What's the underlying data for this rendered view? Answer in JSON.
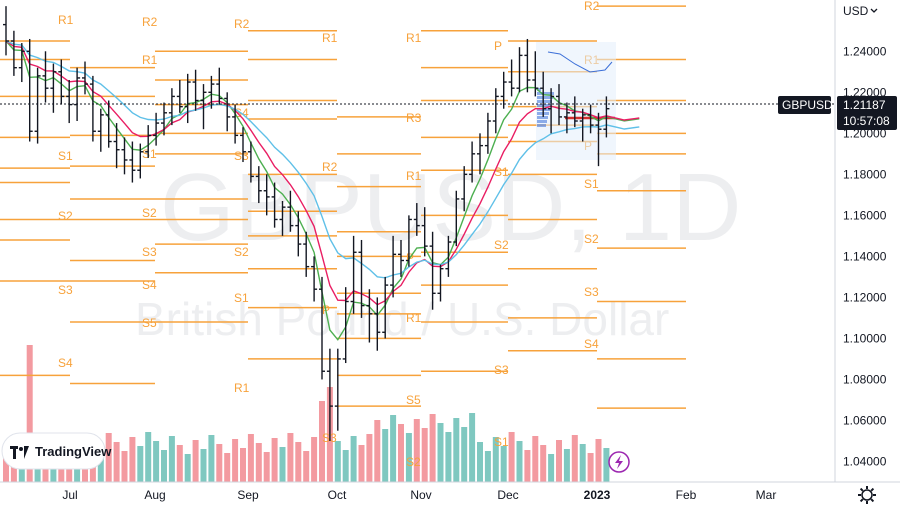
{
  "header": {
    "currency_selector": "USD"
  },
  "watermark": {
    "symbol_line": "GBPUSD, 1D",
    "name_line": "British Pound / U.S. Dollar"
  },
  "logo": {
    "text": "TradingView"
  },
  "price_tag": {
    "symbol": "GBPUSD",
    "price": "1.21187",
    "countdown": "10:57:08"
  },
  "colors": {
    "up_bar": "#131722",
    "volume_up": "#7fc8c0",
    "volume_down": "#f39aa0",
    "ema_fast": "#e91e63",
    "ema_mid": "#4caf50",
    "ema_slow": "#5fc0e8",
    "pivot": "#f7a23b",
    "price_tag_bg": "#131722",
    "poc": "#d32f2f"
  },
  "chart_data": {
    "type": "ohlc",
    "symbol": "GBPUSD",
    "interval": "1D",
    "y_axis": {
      "range": [
        1.03,
        1.265
      ],
      "ticks": [
        "1.24000",
        "1.22000",
        "1.20000",
        "1.18000",
        "1.16000",
        "1.14000",
        "1.12000",
        "1.10000",
        "1.08000",
        "1.06000",
        "1.04000"
      ]
    },
    "x_axis": {
      "labels": [
        "Jul",
        "Aug",
        "Sep",
        "Oct",
        "Nov",
        "Dec",
        "2023",
        "Feb",
        "Mar"
      ]
    },
    "last_price": 1.21187,
    "pivot_labels": [
      "R1",
      "R2",
      "R2",
      "R1",
      "R1",
      "S1",
      "S1",
      "S2",
      "S2",
      "S3",
      "S3",
      "S4",
      "S4",
      "S5",
      "S4",
      "S3",
      "S2",
      "S1",
      "R1",
      "R2",
      "P",
      "R1",
      "R3",
      "R1",
      "P",
      "R1",
      "P",
      "S1",
      "S2",
      "S3",
      "R2",
      "R1",
      "P",
      "S1",
      "S2",
      "S3",
      "S4",
      "S5",
      "S1",
      "S2",
      "S3"
    ],
    "series": [
      {
        "name": "GBPUSD",
        "ohlc_note": "daily bars Jun–Jan"
      },
      {
        "name": "EMA fast",
        "values": []
      },
      {
        "name": "EMA mid",
        "values": []
      },
      {
        "name": "EMA slow",
        "values": []
      }
    ],
    "candles": [
      [
        1.253,
        1.262,
        1.238,
        1.245
      ],
      [
        1.245,
        1.25,
        1.228,
        1.232
      ],
      [
        1.232,
        1.244,
        1.225,
        1.24
      ],
      [
        1.24,
        1.246,
        1.196,
        1.201
      ],
      [
        1.201,
        1.232,
        1.195,
        1.228
      ],
      [
        1.228,
        1.24,
        1.215,
        1.222
      ],
      [
        1.222,
        1.234,
        1.21,
        1.23
      ],
      [
        1.23,
        1.236,
        1.214,
        1.218
      ],
      [
        1.218,
        1.226,
        1.205,
        1.214
      ],
      [
        1.214,
        1.232,
        1.206,
        1.227
      ],
      [
        1.227,
        1.235,
        1.219,
        1.224
      ],
      [
        1.224,
        1.228,
        1.196,
        1.201
      ],
      [
        1.201,
        1.212,
        1.191,
        1.209
      ],
      [
        1.209,
        1.216,
        1.193,
        1.196
      ],
      [
        1.196,
        1.205,
        1.183,
        1.192
      ],
      [
        1.192,
        1.198,
        1.18,
        1.187
      ],
      [
        1.187,
        1.196,
        1.176,
        1.182
      ],
      [
        1.182,
        1.195,
        1.178,
        1.191
      ],
      [
        1.191,
        1.204,
        1.188,
        1.199
      ],
      [
        1.199,
        1.21,
        1.194,
        1.205
      ],
      [
        1.205,
        1.215,
        1.199,
        1.21
      ],
      [
        1.21,
        1.222,
        1.204,
        1.218
      ],
      [
        1.218,
        1.226,
        1.21,
        1.213
      ],
      [
        1.213,
        1.229,
        1.205,
        1.225
      ],
      [
        1.225,
        1.231,
        1.211,
        1.216
      ],
      [
        1.216,
        1.224,
        1.202,
        1.22
      ],
      [
        1.22,
        1.228,
        1.212,
        1.224
      ],
      [
        1.224,
        1.232,
        1.214,
        1.217
      ],
      [
        1.217,
        1.22,
        1.201,
        1.208
      ],
      [
        1.208,
        1.214,
        1.195,
        1.199
      ],
      [
        1.199,
        1.203,
        1.186,
        1.191
      ],
      [
        1.191,
        1.196,
        1.176,
        1.179
      ],
      [
        1.179,
        1.184,
        1.166,
        1.172
      ],
      [
        1.172,
        1.18,
        1.16,
        1.169
      ],
      [
        1.169,
        1.176,
        1.154,
        1.158
      ],
      [
        1.158,
        1.167,
        1.15,
        1.164
      ],
      [
        1.164,
        1.172,
        1.152,
        1.155
      ],
      [
        1.155,
        1.162,
        1.14,
        1.146
      ],
      [
        1.146,
        1.152,
        1.13,
        1.135
      ],
      [
        1.135,
        1.14,
        1.118,
        1.124
      ],
      [
        1.124,
        1.13,
        1.08,
        1.084
      ],
      [
        1.084,
        1.095,
        1.05,
        1.067
      ],
      [
        1.067,
        1.095,
        1.055,
        1.09
      ],
      [
        1.09,
        1.125,
        1.088,
        1.118
      ],
      [
        1.118,
        1.15,
        1.112,
        1.142
      ],
      [
        1.142,
        1.148,
        1.11,
        1.116
      ],
      [
        1.116,
        1.124,
        1.098,
        1.112
      ],
      [
        1.112,
        1.12,
        1.094,
        1.103
      ],
      [
        1.103,
        1.13,
        1.1,
        1.126
      ],
      [
        1.126,
        1.15,
        1.12,
        1.141
      ],
      [
        1.141,
        1.148,
        1.13,
        1.138
      ],
      [
        1.138,
        1.16,
        1.135,
        1.158
      ],
      [
        1.158,
        1.166,
        1.15,
        1.155
      ],
      [
        1.155,
        1.164,
        1.14,
        1.145
      ],
      [
        1.145,
        1.152,
        1.114,
        1.122
      ],
      [
        1.122,
        1.136,
        1.118,
        1.134
      ],
      [
        1.134,
        1.15,
        1.13,
        1.147
      ],
      [
        1.147,
        1.172,
        1.145,
        1.168
      ],
      [
        1.168,
        1.184,
        1.162,
        1.18
      ],
      [
        1.18,
        1.196,
        1.176,
        1.19
      ],
      [
        1.19,
        1.2,
        1.18,
        1.194
      ],
      [
        1.194,
        1.21,
        1.19,
        1.206
      ],
      [
        1.206,
        1.222,
        1.2,
        1.218
      ],
      [
        1.218,
        1.23,
        1.212,
        1.225
      ],
      [
        1.225,
        1.236,
        1.218,
        1.222
      ],
      [
        1.222,
        1.242,
        1.22,
        1.238
      ],
      [
        1.238,
        1.246,
        1.22,
        1.226
      ],
      [
        1.226,
        1.24,
        1.218,
        1.222
      ],
      [
        1.222,
        1.23,
        1.208,
        1.212
      ],
      [
        1.212,
        1.222,
        1.2,
        1.218
      ],
      [
        1.218,
        1.224,
        1.204,
        1.208
      ],
      [
        1.208,
        1.215,
        1.2,
        1.21
      ],
      [
        1.21,
        1.218,
        1.203,
        1.206
      ],
      [
        1.206,
        1.212,
        1.196,
        1.209
      ],
      [
        1.209,
        1.214,
        1.2,
        1.204
      ],
      [
        1.204,
        1.21,
        1.184,
        1.202
      ],
      [
        1.202,
        1.218,
        1.198,
        1.212
      ]
    ]
  },
  "time_axis_extra": {
    "settings_icon": "gear-icon"
  }
}
